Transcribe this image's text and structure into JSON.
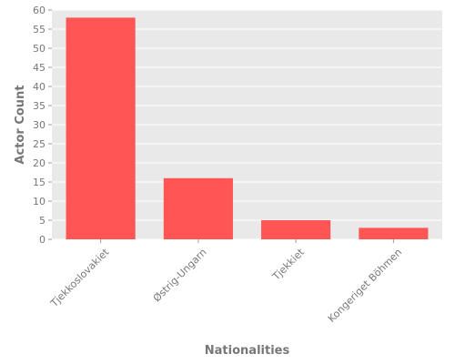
{
  "chart_data": {
    "type": "bar",
    "title": "",
    "xlabel": "Nationalities",
    "ylabel": "Actor Count",
    "categories": [
      "Tjekkoslovakiet",
      "Østrig-Ungarn",
      "Tjekkiet",
      "Kongeriget Böhmen"
    ],
    "values": [
      58,
      16,
      5,
      3
    ],
    "ylim": [
      0,
      60
    ],
    "yticks": [
      0,
      5,
      10,
      15,
      20,
      25,
      30,
      35,
      40,
      45,
      50,
      55,
      60
    ],
    "grid": true,
    "legend": "none",
    "bar_color": "#ff5555",
    "background_color": "#e9e9e9",
    "grid_color": "#ffffff"
  }
}
